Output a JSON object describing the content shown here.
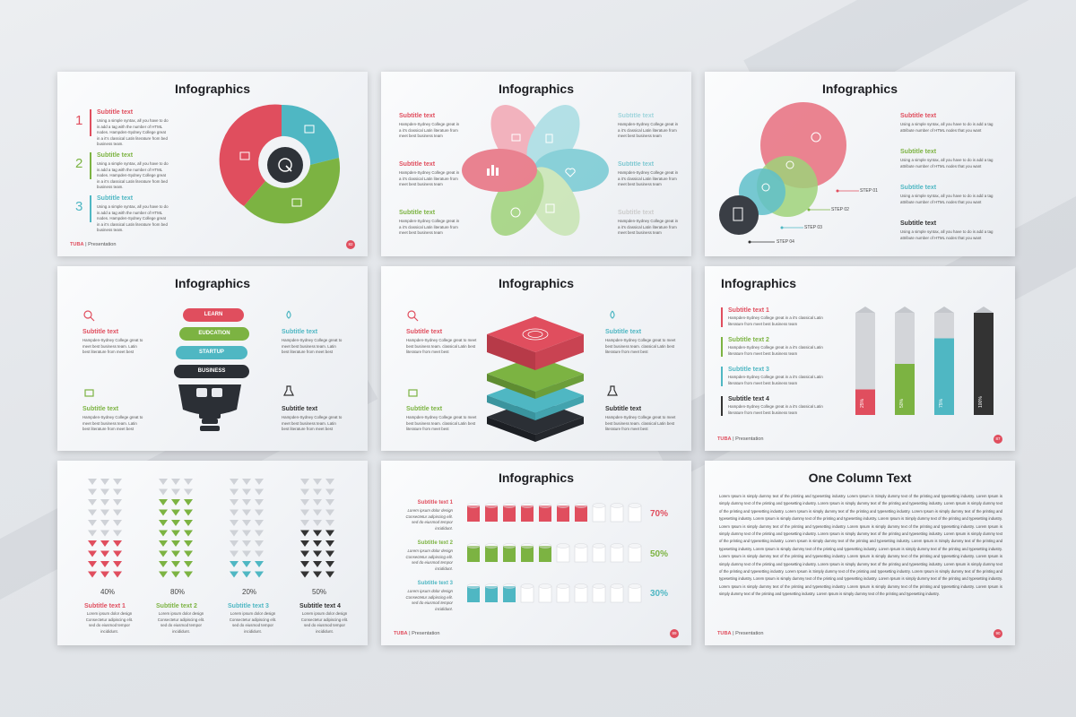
{
  "slides": {
    "s1": {
      "title": "Infographics",
      "items": [
        {
          "num": "1",
          "sub": "Subtitle text",
          "body": "Using a simple syntax, all you have to do is add a tag with the number of HTML nodes. Hampden-Sydney College great in a it's classical Latin literature from bed business team."
        },
        {
          "num": "2",
          "sub": "Subtitle text",
          "body": "Using a simple syntax, all you have to do is add a tag with the number of HTML nodes. Hampden-Sydney College great in a it's classical Latin literature from bed business team."
        },
        {
          "num": "3",
          "sub": "Subtitle text",
          "body": "Using a simple syntax, all you have to do is add a tag with the number of HTML nodes. Hampden-Sydney College great in a it's classical Latin literature from bed business team."
        }
      ],
      "brand": "TUBA",
      "footer": "Presentation",
      "page": "82"
    },
    "s2": {
      "title": "Infographics",
      "left": [
        {
          "sub": "Subtitle text",
          "body": "Hampden-Sydney College great in a it's classical Latin literature from meet best business team"
        },
        {
          "sub": "Subtitle text",
          "body": "Hampden-Sydney College great in a it's classical Latin literature from meet best business team"
        },
        {
          "sub": "Subtitle text",
          "body": "Hampden-Sydney College great in a it's classical Latin literature from meet best business team"
        }
      ],
      "right": [
        {
          "sub": "Subtitle text",
          "body": "Hampden-Sydney College great in a it's classical Latin literature from meet best business team"
        },
        {
          "sub": "Subtitle text",
          "body": "Hampden-Sydney College great in a it's classical Latin literature from meet best business team"
        },
        {
          "sub": "Subtitle text",
          "body": "Hampden-Sydney College great in a it's classical Latin literature from meet best business team"
        }
      ]
    },
    "s3": {
      "title": "Infographics",
      "items": [
        {
          "sub": "Subtitle text",
          "body": "Using a simple syntax, all you have to do is add a tag attribute number of HTML nodes that you want"
        },
        {
          "sub": "Subtitle text",
          "body": "Using a simple syntax, all you have to do is add a tag attribute number of HTML nodes that you want"
        },
        {
          "sub": "Subtitle text",
          "body": "Using a simple syntax, all you have to do is add a tag attribute number of HTML nodes that you want"
        },
        {
          "sub": "Subtitle text",
          "body": "Using a simple syntax, all you have to do is add a tag attribute number of HTML nodes that you want"
        }
      ],
      "steps": [
        "STEP 01",
        "STEP 02",
        "STEP 03",
        "STEP 04"
      ]
    },
    "s4": {
      "title": "Infographics",
      "pills": [
        "LEARN",
        "EUDCATION",
        "STARTUP",
        "BUSINESS"
      ],
      "items": [
        {
          "sub": "Subtitle text",
          "body": "Hampden-Sydney College great to meet best business team. Latin best literature from meet best"
        },
        {
          "sub": "Subtitle text",
          "body": "Hampden-Sydney College great to meet best business team. Latin best literature from meet best"
        },
        {
          "sub": "Subtitle text",
          "body": "Hampden-Sydney College great to meet best business team. Latin best literature from meet best"
        },
        {
          "sub": "Subtitle text",
          "body": "Hampden-Sydney College great to meet best business team. Latin best literature from meet best"
        }
      ]
    },
    "s5": {
      "title": "Infographics",
      "items": [
        {
          "sub": "Subtitle text",
          "body": "Hampden-Sydney College great to meet best business team. classical Latin best literature from meet best"
        },
        {
          "sub": "Subtitle text",
          "body": "Hampden-Sydney College great to meet best business team. classical Latin best literature from meet best"
        },
        {
          "sub": "Subtitle text",
          "body": "Hampden-Sydney College great to meet best business team. classical Latin best literature from meet best"
        },
        {
          "sub": "Subtitle text",
          "body": "Hampden-Sydney College great to meet best business team. classical Latin best literature from meet best"
        }
      ]
    },
    "s6": {
      "title": "Infographics",
      "items": [
        {
          "sub": "Subtitle text 1",
          "body": "Hampden-Sydney College great in a it's classical Latin literature from meet best business team"
        },
        {
          "sub": "Subtitle text 2",
          "body": "Hampden-Sydney College great in a it's classical Latin literature from meet best business team"
        },
        {
          "sub": "Subtitle text 3",
          "body": "Hampden-Sydney College great in a it's classical Latin literature from meet best business team"
        },
        {
          "sub": "Subtitle text 4",
          "body": "Hampden-Sydney College great in a it's classical Latin literature from meet best business team"
        }
      ],
      "bar_values": [
        25,
        50,
        75,
        100
      ],
      "bar_labels": [
        "25%",
        "50%",
        "75%",
        "100%"
      ],
      "brand": "TUBA",
      "footer": "Presentation",
      "page": "87"
    },
    "s7": {
      "values": [
        40,
        80,
        20,
        50
      ],
      "labels": [
        "40%",
        "80%",
        "20%",
        "50%"
      ],
      "items": [
        {
          "sub": "Subtitle text 1",
          "body": "Lorem ipsum dolor design Consectetur adipiscing elit. sed do eiusmod tempor incididunt."
        },
        {
          "sub": "Subtitle text 2",
          "body": "Lorem ipsum dolor design Consectetur adipiscing elit. sed do eiusmod tempor incididunt."
        },
        {
          "sub": "Subtitle text 3",
          "body": "Lorem ipsum dolor design Consectetur adipiscing elit. sed do eiusmod tempor incididunt."
        },
        {
          "sub": "Subtitle text 4",
          "body": "Lorem ipsum dolor design Consectetur adipiscing elit. sed do eiusmod tempor incididunt."
        }
      ]
    },
    "s8": {
      "title": "Infographics",
      "rows": [
        {
          "sub": "Subtitle text 1",
          "body": "Lorem ipsum dolor design Consectetur adipiscing elit. sed do eiusmod tempor incididunt.",
          "value": 70,
          "label": "70%"
        },
        {
          "sub": "Subtitle text 2",
          "body": "Lorem ipsum dolor design Consectetur adipiscing elit. sed do eiusmod tempor incididunt.",
          "value": 50,
          "label": "50%"
        },
        {
          "sub": "Subtitle text 3",
          "body": "Lorem ipsum dolor design Consectetur adipiscing elit. sed do eiusmod tempor incididunt.",
          "value": 30,
          "label": "30%"
        }
      ],
      "brand": "TUBA",
      "footer": "Presentation",
      "page": "89"
    },
    "s9": {
      "title": "One Column Text",
      "text": "Lorem Ipsum is simply dummy text of the printing and typesetting industry. Lorem Ipsum is Simply dummy text of the printing and typesetting industry. Lorem Ipsum is simply dummy text of the printing and typesetting industry. Lorem Ipsum is simply dummy text of the printing and typesetting industry. Lorem Ipsum is simply dummy text of the printing and typesetting industry. Lorem Ipsum is simply dummy text of the printing and typesetting industry. Lorem Ipsum is simply dummy text of the printing and typesetting industry. Lorem Ipsum is simply dummy text of the printing and typesetting industry. Lorem Ipsum is Simply dummy text of the printing and typesetting industry. Lorem Ipsum is simply dummy text of the printing and typesetting industry. Lorem Ipsum is simply dummy text of the printing and typesetting industry. Lorem Ipsum is simply dummy text of the printing and typesetting industry. Lorem Ipsum is simply dummy text of the printing and typesetting industry. Lorem Ipsum is simply dummy text of the printing and typesetting industry. Lorem Ipsum is simply dummy text of the printing and typesetting industry. Lorem Ipsum is Simply dummy text of the printing and typesetting industry. Lorem Ipsum is simply dummy text of the printing and typesetting industry. Lorem Ipsum is simply dummy text of the printing and typesetting industry. Lorem Ipsum is simply dummy text of the printing and typesetting industry. Lorem Ipsum is simply dummy text of the printing and typesetting industry. Lorem Ipsum is simply dummy text of the printing and typesetting industry. Lorem Ipsum is simply dummy text of the printing and typesetting industry. Lorem Ipsum is simply dummy text of the printing and typesetting industry. Lorem Ipsum is Simply dummy text of the printing and typesetting industry. Lorem Ipsum is simply dummy text of the printing and typesetting industry. Lorem Ipsum is simply dummy text of the printing and typesetting industry. Lorem Ipsum is simply dummy text of the printing and typesetting industry. Lorem Ipsum is simply dummy text of the printing and typesetting industry. Lorem Ipsum is simply dummy text of the printing and typesetting industry. Lorem Ipsum is simply dummy text of the printing and typesetting industry. Lorem Ipsum is simply dummy text of the printing and typesetting industry.",
      "brand": "TUBA",
      "footer": "Presentation",
      "page": "90"
    }
  },
  "colors": {
    "red": "#e04e5e",
    "green": "#7cb342",
    "teal": "#4fb7c3",
    "dark": "#333333"
  }
}
